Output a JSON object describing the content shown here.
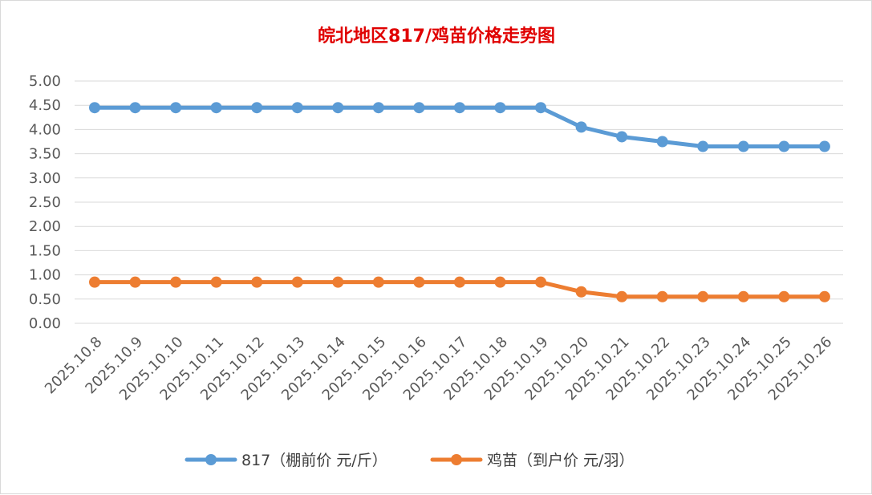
{
  "chart_data": {
    "type": "line",
    "title": "皖北地区817/鸡苗价格走势图",
    "xlabel": "",
    "ylabel": "",
    "categories": [
      "2025.10.8",
      "2025.10.9",
      "2025.10.10",
      "2025.10.11",
      "2025.10.12",
      "2025.10.13",
      "2025.10.14",
      "2025.10.15",
      "2025.10.16",
      "2025.10.17",
      "2025.10.18",
      "2025.10.19",
      "2025.10.20",
      "2025.10.21",
      "2025.10.22",
      "2025.10.23",
      "2025.10.24",
      "2025.10.25",
      "2025.10.26"
    ],
    "y_ticks": [
      "5.00",
      "4.50",
      "4.00",
      "3.50",
      "3.00",
      "2.50",
      "2.00",
      "1.50",
      "1.00",
      "0.50",
      "0.00"
    ],
    "ylim": [
      0,
      5
    ],
    "grid": true,
    "legend_position": "bottom",
    "series": [
      {
        "name": "817（棚前价 元/斤）",
        "color": "#5b9bd5",
        "values": [
          4.45,
          4.45,
          4.45,
          4.45,
          4.45,
          4.45,
          4.45,
          4.45,
          4.45,
          4.45,
          4.45,
          4.45,
          4.05,
          3.85,
          3.75,
          3.65,
          3.65,
          3.65,
          3.65
        ]
      },
      {
        "name": "鸡苗（到户价 元/羽）",
        "color": "#ed7d31",
        "values": [
          0.85,
          0.85,
          0.85,
          0.85,
          0.85,
          0.85,
          0.85,
          0.85,
          0.85,
          0.85,
          0.85,
          0.85,
          0.65,
          0.55,
          0.55,
          0.55,
          0.55,
          0.55,
          0.55
        ]
      }
    ]
  }
}
